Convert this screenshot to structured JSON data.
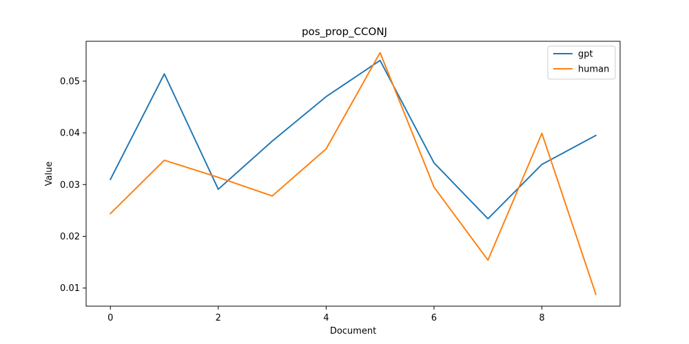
{
  "chart_data": {
    "type": "line",
    "title": "pos_prop_CCONJ",
    "xlabel": "Document",
    "ylabel": "Value",
    "x": [
      0,
      1,
      2,
      3,
      4,
      5,
      6,
      7,
      8,
      9
    ],
    "xlim": [
      -0.45,
      9.45
    ],
    "ylim": [
      0.0065,
      0.0577
    ],
    "x_ticks": [
      0,
      2,
      4,
      6,
      8
    ],
    "y_ticks": [
      0.01,
      0.02,
      0.03,
      0.04,
      0.05
    ],
    "x_tick_labels": [
      "0",
      "2",
      "4",
      "6",
      "8"
    ],
    "y_tick_labels": [
      "0.01",
      "0.02",
      "0.03",
      "0.04",
      "0.05"
    ],
    "grid": false,
    "legend_position": "top-right",
    "series": [
      {
        "name": "gpt",
        "color": "#1f77b4",
        "values": [
          0.031,
          0.0514,
          0.0291,
          0.0384,
          0.047,
          0.054,
          0.0342,
          0.0234,
          0.0339,
          0.0395
        ]
      },
      {
        "name": "human",
        "color": "#ff7f0e",
        "values": [
          0.0244,
          0.0347,
          0.0314,
          0.0278,
          0.0369,
          0.0555,
          0.0295,
          0.0154,
          0.0399,
          0.0088
        ]
      }
    ]
  }
}
